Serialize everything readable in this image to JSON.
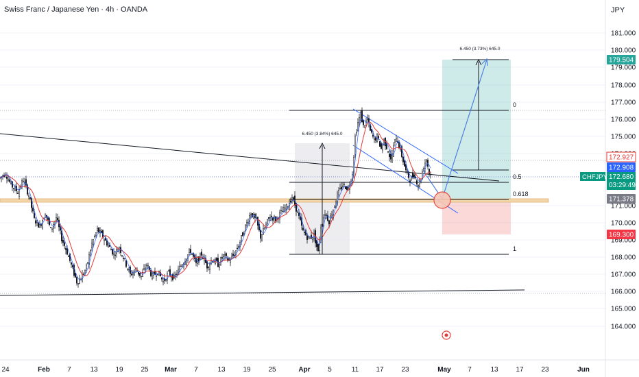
{
  "header": {
    "title": "Swiss Franc / Japanese Yen · 4h · OANDA",
    "currency": "JPY"
  },
  "colors": {
    "up": "#131722",
    "ma_red": "#e53935",
    "ma_blue": "#2962ff",
    "target_zone": "#26a69a",
    "stop_zone": "#ef5350",
    "support_zone": "#f5d6a8",
    "channel": "#2962ff",
    "fib_lines": "#131722"
  },
  "chart_data": {
    "type": "candlestick",
    "symbol": "CHFJPY",
    "timeframe": "4h",
    "ylim": [
      163.0,
      182.0
    ],
    "y_ticks": [
      "181.000",
      "180.000",
      "179.000",
      "178.000",
      "177.000",
      "176.000",
      "175.000",
      "174.000",
      "171.000",
      "170.000",
      "169.000",
      "168.000",
      "167.000",
      "166.000",
      "165.000",
      "164.000"
    ],
    "x_ticks": [
      "24",
      "Feb",
      "7",
      "13",
      "19",
      "25",
      "Mar",
      "7",
      "13",
      "19",
      "25",
      "Apr",
      "5",
      "11",
      "17",
      "23",
      "May",
      "7",
      "13",
      "17",
      "23",
      "Jun"
    ],
    "price_path": [
      [
        0,
        172.6
      ],
      [
        8,
        172.9
      ],
      [
        16,
        172.2
      ],
      [
        26,
        171.8
      ],
      [
        34,
        172.5
      ],
      [
        42,
        171.6
      ],
      [
        50,
        170.2
      ],
      [
        58,
        169.8
      ],
      [
        66,
        170.6
      ],
      [
        74,
        169.6
      ],
      [
        82,
        170.3
      ],
      [
        90,
        169.1
      ],
      [
        98,
        168.3
      ],
      [
        106,
        167.3
      ],
      [
        112,
        166.6
      ],
      [
        118,
        166.8
      ],
      [
        126,
        167.4
      ],
      [
        134,
        168.8
      ],
      [
        142,
        169.6
      ],
      [
        150,
        169.2
      ],
      [
        158,
        168.7
      ],
      [
        166,
        168.2
      ],
      [
        174,
        168.6
      ],
      [
        182,
        167.8
      ],
      [
        190,
        167.0
      ],
      [
        198,
        167.3
      ],
      [
        206,
        166.9
      ],
      [
        214,
        167.6
      ],
      [
        222,
        166.9
      ],
      [
        230,
        167.2
      ],
      [
        238,
        166.6
      ],
      [
        246,
        167.1
      ],
      [
        254,
        166.8
      ],
      [
        262,
        167.4
      ],
      [
        270,
        167.9
      ],
      [
        278,
        168.4
      ],
      [
        286,
        167.6
      ],
      [
        294,
        168.2
      ],
      [
        302,
        167.5
      ],
      [
        310,
        167.9
      ],
      [
        318,
        167.6
      ],
      [
        326,
        168.1
      ],
      [
        334,
        167.8
      ],
      [
        342,
        168.2
      ],
      [
        350,
        168.9
      ],
      [
        358,
        169.8
      ],
      [
        366,
        170.6
      ],
      [
        374,
        170.1
      ],
      [
        380,
        169.2
      ],
      [
        386,
        169.7
      ],
      [
        394,
        170.4
      ],
      [
        402,
        170.2
      ],
      [
        410,
        170.6
      ],
      [
        418,
        170.9
      ],
      [
        426,
        171.5
      ],
      [
        434,
        170.6
      ],
      [
        442,
        169.5
      ],
      [
        450,
        169.1
      ],
      [
        458,
        169.3
      ],
      [
        464,
        168.3
      ],
      [
        468,
        169.8
      ],
      [
        474,
        170.6
      ],
      [
        480,
        170.1
      ],
      [
        486,
        170.8
      ],
      [
        492,
        171.6
      ],
      [
        500,
        172.2
      ],
      [
        508,
        172.0
      ],
      [
        514,
        172.9
      ],
      [
        518,
        175.0
      ],
      [
        522,
        175.8
      ],
      [
        526,
        176.3
      ],
      [
        530,
        175.6
      ],
      [
        536,
        176.0
      ],
      [
        540,
        175.3
      ],
      [
        546,
        174.8
      ],
      [
        550,
        175.0
      ],
      [
        556,
        174.3
      ],
      [
        560,
        174.8
      ],
      [
        566,
        174.2
      ],
      [
        570,
        173.6
      ],
      [
        574,
        174.4
      ],
      [
        578,
        175.0
      ],
      [
        584,
        174.2
      ],
      [
        588,
        173.6
      ],
      [
        592,
        173.0
      ],
      [
        598,
        172.5
      ],
      [
        604,
        172.8
      ],
      [
        610,
        172.2
      ],
      [
        614,
        172.6
      ],
      [
        618,
        173.3
      ],
      [
        622,
        173.7
      ],
      [
        626,
        172.9
      ],
      [
        630,
        172.68
      ]
    ],
    "annotations": {
      "long_target_label": "6.450 (3.73%) 645.0",
      "measure_label": "6.450 (3.84%) 645.0",
      "fib_0": "0",
      "fib_05": "0.5",
      "fib_0618": "0.618",
      "fib_1": "1"
    },
    "price_labels": {
      "target": "179.504",
      "ma_red_value": "172.927",
      "ma_blue_value": "172.908",
      "symbol": "CHFJPY",
      "last_price": "172.680",
      "countdown": "03:29:49",
      "fib_value": "171.378",
      "stop": "169.300"
    }
  }
}
